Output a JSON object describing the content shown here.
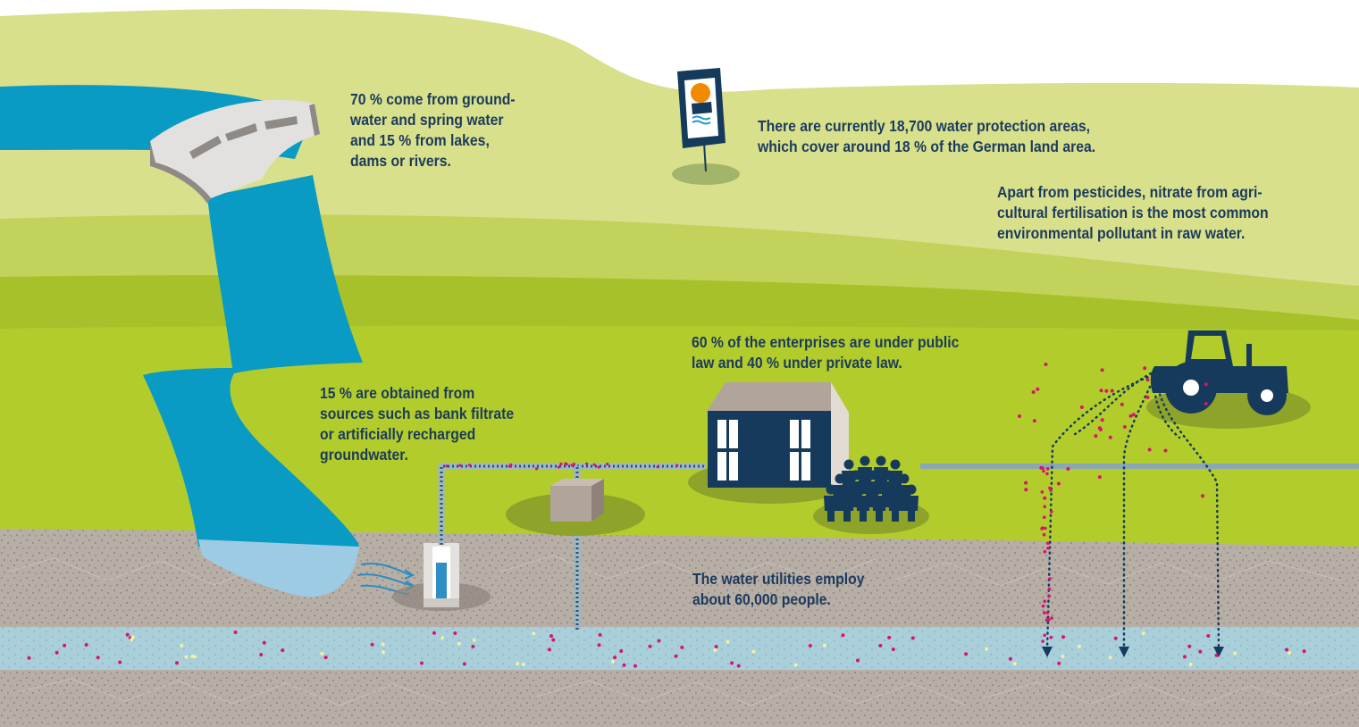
{
  "colors": {
    "hill_light": "#d8e08b",
    "hill_mid": "#c3d25a",
    "field_dark": "#a7c12a",
    "field_main": "#b2cd2b",
    "water": "#0a9bc4",
    "water_light": "#9ccbe3",
    "soil": "#b7aea6",
    "aquifer": "#a9cfdb",
    "navy": "#163a5c",
    "pollutant": "#d6156e"
  },
  "icons": [
    "dam-icon",
    "water-protection-sign-icon",
    "well-icon",
    "waterworks-building-icon",
    "employees-group-icon",
    "tractor-icon"
  ],
  "annotations": {
    "sources": {
      "line1": "70 % come from ground-",
      "line2": "water and spring water",
      "line3": "and 15 % from lakes,",
      "line4": "dams or rivers."
    },
    "protection_areas": {
      "line1": "There are currently 18,700 water protection areas,",
      "line2": "which cover around 18 % of the German land area."
    },
    "nitrate": {
      "line1": "Apart from pesticides, nitrate from agri-",
      "line2": "cultural fertilisation is the most common",
      "line3": "environmental pollutant in raw water."
    },
    "enterprises": {
      "line1": "60 % of the enterprises are under public",
      "line2": "law and 40 % under private law."
    },
    "bank_filtrate": {
      "line1": "15 % are obtained from",
      "line2": "sources such as bank filtrate",
      "line3": "or artificially recharged",
      "line4": "groundwater."
    },
    "employees": {
      "line1": "The water utilities employ",
      "line2": "about 60,000 people."
    }
  }
}
